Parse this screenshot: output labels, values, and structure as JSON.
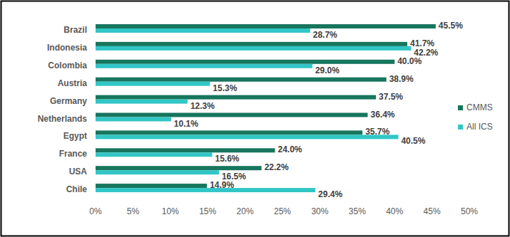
{
  "chart_data": {
    "type": "bar",
    "orientation": "horizontal",
    "categories": [
      "Brazil",
      "Indonesia",
      "Colombia",
      "Austria",
      "Germany",
      "Netherlands",
      "Egypt",
      "France",
      "USA",
      "Chile"
    ],
    "series": [
      {
        "name": "CMMS",
        "color": "#17765d",
        "values": [
          45.5,
          41.7,
          40.0,
          38.9,
          37.5,
          36.4,
          35.7,
          24.0,
          22.2,
          14.9
        ],
        "value_labels": [
          "45.5%",
          "41.7%",
          "40.0%",
          "38.9%",
          "37.5%",
          "36.4%",
          "35.7%",
          "24.0%",
          "22.2%",
          "14.9%"
        ]
      },
      {
        "name": "All ICS",
        "color": "#31c6c6",
        "values": [
          28.7,
          42.2,
          29.0,
          15.3,
          12.3,
          10.1,
          40.5,
          15.6,
          16.5,
          29.4
        ],
        "value_labels": [
          "28.7%",
          "42.2%",
          "29.0%",
          "15.3%",
          "12.3%",
          "10.1%",
          "40.5%",
          "15.6%",
          "16.5%",
          "29.4%"
        ]
      }
    ],
    "xlim": [
      0,
      50
    ],
    "xticks": [
      {
        "value": 0,
        "label": "0%"
      },
      {
        "value": 5,
        "label": "5%"
      },
      {
        "value": 10,
        "label": "10%"
      },
      {
        "value": 15,
        "label": "15%"
      },
      {
        "value": 20,
        "label": "20%"
      },
      {
        "value": 25,
        "label": "25%"
      },
      {
        "value": 30,
        "label": "30%"
      },
      {
        "value": 35,
        "label": "35%"
      },
      {
        "value": 40,
        "label": "40%"
      },
      {
        "value": 45,
        "label": "45%"
      },
      {
        "value": 50,
        "label": "50%"
      }
    ],
    "grid": false,
    "legend": "right",
    "data_labels": true
  }
}
